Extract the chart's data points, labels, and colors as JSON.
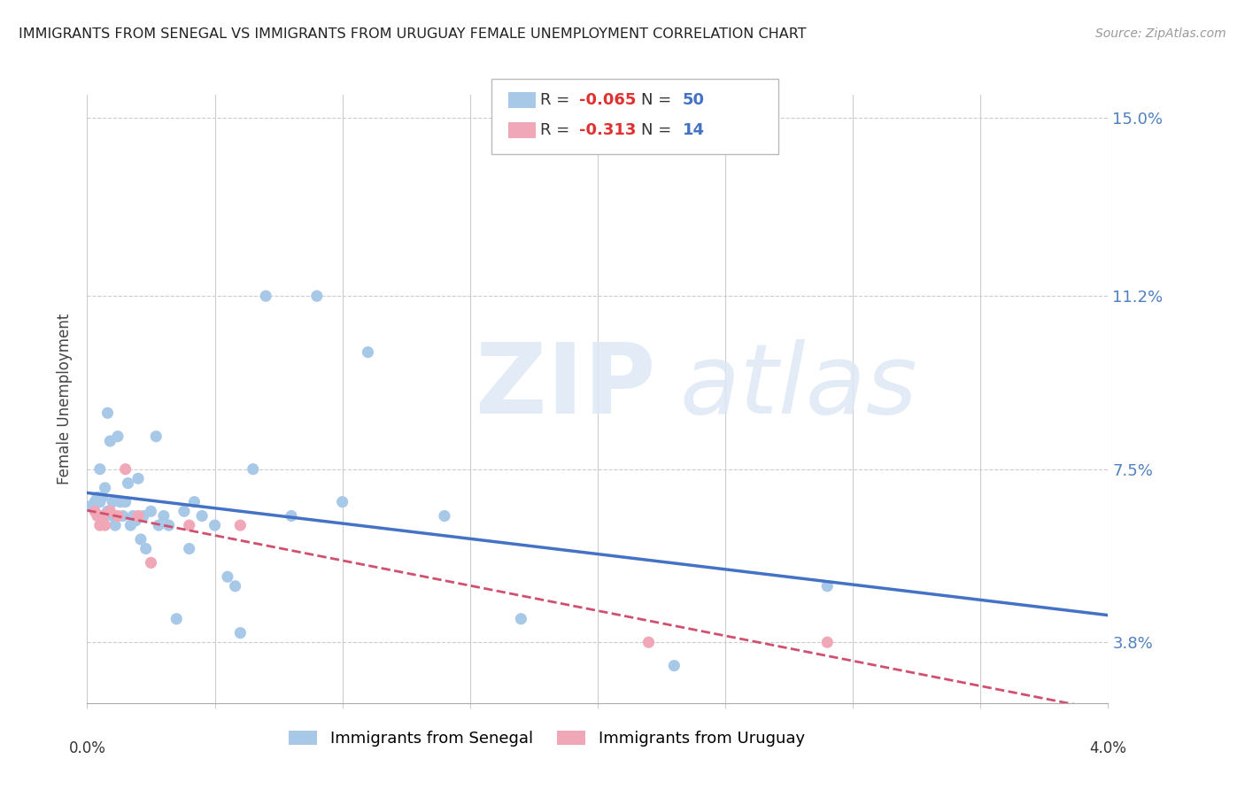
{
  "title": "IMMIGRANTS FROM SENEGAL VS IMMIGRANTS FROM URUGUAY FEMALE UNEMPLOYMENT CORRELATION CHART",
  "source": "Source: ZipAtlas.com",
  "ylabel": "Female Unemployment",
  "right_ytick_vals": [
    0.038,
    0.075,
    0.112,
    0.15
  ],
  "right_ytick_labels": [
    "3.8%",
    "7.5%",
    "11.2%",
    "15.0%"
  ],
  "senegal_color": "#a8c8e8",
  "uruguay_color": "#f0a8b8",
  "senegal_line_color": "#4472c4",
  "uruguay_line_color": "#d05070",
  "xmin": 0.0,
  "xmax": 0.04,
  "ymin": 0.025,
  "ymax": 0.155,
  "senegal_x": [
    0.0,
    0.0003,
    0.0004,
    0.0005,
    0.0005,
    0.0006,
    0.0007,
    0.0007,
    0.0008,
    0.0008,
    0.0009,
    0.001,
    0.001,
    0.0011,
    0.0012,
    0.0013,
    0.0014,
    0.0015,
    0.0016,
    0.0017,
    0.0018,
    0.0019,
    0.002,
    0.0021,
    0.0022,
    0.0023,
    0.0025,
    0.0027,
    0.0028,
    0.003,
    0.0032,
    0.0035,
    0.0038,
    0.004,
    0.0042,
    0.0045,
    0.005,
    0.0055,
    0.0058,
    0.006,
    0.0065,
    0.007,
    0.008,
    0.009,
    0.01,
    0.011,
    0.014,
    0.017,
    0.023,
    0.029
  ],
  "senegal_y": [
    0.067,
    0.068,
    0.069,
    0.068,
    0.075,
    0.069,
    0.071,
    0.065,
    0.087,
    0.066,
    0.081,
    0.068,
    0.065,
    0.063,
    0.082,
    0.068,
    0.065,
    0.068,
    0.072,
    0.063,
    0.065,
    0.064,
    0.073,
    0.06,
    0.065,
    0.058,
    0.066,
    0.082,
    0.063,
    0.065,
    0.063,
    0.043,
    0.066,
    0.058,
    0.068,
    0.065,
    0.063,
    0.052,
    0.05,
    0.04,
    0.075,
    0.112,
    0.065,
    0.112,
    0.068,
    0.1,
    0.065,
    0.043,
    0.033,
    0.05
  ],
  "uruguay_x": [
    0.0003,
    0.0004,
    0.0005,
    0.0006,
    0.0007,
    0.0009,
    0.0012,
    0.0015,
    0.002,
    0.0025,
    0.004,
    0.006,
    0.022,
    0.029
  ],
  "uruguay_y": [
    0.066,
    0.065,
    0.063,
    0.065,
    0.063,
    0.066,
    0.065,
    0.075,
    0.065,
    0.055,
    0.063,
    0.063,
    0.038,
    0.038
  ]
}
